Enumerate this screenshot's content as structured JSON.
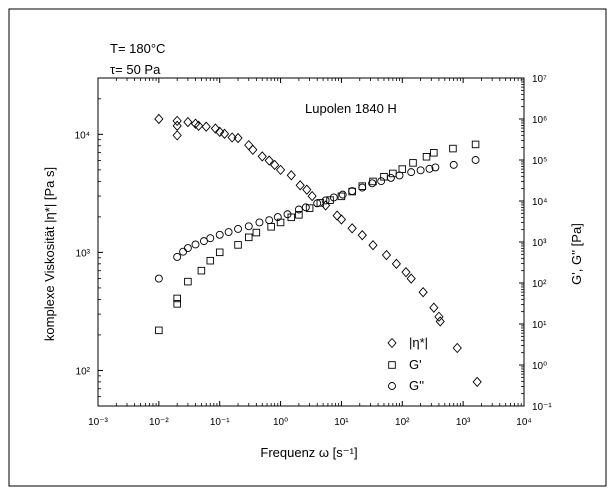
{
  "chart_data": {
    "type": "scatter",
    "title": "Lupolen 1840 H",
    "conditions": [
      "T= 180°C",
      "τ= 50 Pa"
    ],
    "xlabel": "Frequenz ω [s⁻¹]",
    "ylabel_left": "komplexe Viskosität |η*| [Pa s]",
    "ylabel_right": "G', G'' [Pa]",
    "x_scale": "log",
    "y_left_scale": "log",
    "y_right_scale": "log",
    "xlim": [
      0.001,
      10000
    ],
    "ylim_left": [
      50,
      30000
    ],
    "ylim_right": [
      0.1,
      10000000
    ],
    "x_ticks": [
      {
        "value": 0.001,
        "label": "10⁻³"
      },
      {
        "value": 0.01,
        "label": "10⁻²"
      },
      {
        "value": 0.1,
        "label": "10⁻¹"
      },
      {
        "value": 1,
        "label": "10⁰"
      },
      {
        "value": 10,
        "label": "10¹"
      },
      {
        "value": 100,
        "label": "10²"
      },
      {
        "value": 1000,
        "label": "10³"
      },
      {
        "value": 10000,
        "label": "10⁴"
      }
    ],
    "y_left_ticks": [
      {
        "value": 100,
        "label": "10²"
      },
      {
        "value": 1000,
        "label": "10³"
      },
      {
        "value": 10000,
        "label": "10⁴"
      }
    ],
    "y_right_ticks": [
      {
        "value": 0.1,
        "label": "10⁻¹"
      },
      {
        "value": 1,
        "label": "10⁰"
      },
      {
        "value": 10,
        "label": "10¹"
      },
      {
        "value": 100,
        "label": "10²"
      },
      {
        "value": 1000,
        "label": "10³"
      },
      {
        "value": 10000,
        "label": "10⁴"
      },
      {
        "value": 100000,
        "label": "10⁵"
      },
      {
        "value": 1000000,
        "label": "10⁶"
      },
      {
        "value": 10000000,
        "label": "10⁷"
      }
    ],
    "legend_position": "bottom-right",
    "series": [
      {
        "name": "|η*|",
        "marker": "diamond",
        "axis": "left",
        "points": [
          [
            0.01,
            13500
          ],
          [
            0.02,
            9800
          ],
          [
            0.02,
            11800
          ],
          [
            0.02,
            13000
          ],
          [
            0.03,
            12700
          ],
          [
            0.04,
            12300
          ],
          [
            0.045,
            11800
          ],
          [
            0.06,
            11600
          ],
          [
            0.085,
            11200
          ],
          [
            0.1,
            10500
          ],
          [
            0.12,
            10100
          ],
          [
            0.16,
            9400
          ],
          [
            0.2,
            9300
          ],
          [
            0.3,
            8100
          ],
          [
            0.35,
            7400
          ],
          [
            0.5,
            6500
          ],
          [
            0.65,
            6000
          ],
          [
            0.8,
            5500
          ],
          [
            1.0,
            5000
          ],
          [
            1.5,
            4500
          ],
          [
            2.1,
            3700
          ],
          [
            2.7,
            3400
          ],
          [
            3.3,
            3000
          ],
          [
            5.5,
            2500
          ],
          [
            8.5,
            2050
          ],
          [
            10,
            1900
          ],
          [
            15,
            1600
          ],
          [
            22,
            1400
          ],
          [
            33,
            1150
          ],
          [
            55,
            950
          ],
          [
            80,
            800
          ],
          [
            115,
            680
          ],
          [
            140,
            600
          ],
          [
            220,
            460
          ],
          [
            330,
            340
          ],
          [
            400,
            285
          ],
          [
            420,
            260
          ],
          [
            800,
            155
          ],
          [
            1700,
            80
          ]
        ]
      },
      {
        "name": "G'",
        "marker": "square",
        "axis": "right",
        "points": [
          [
            0.01,
            7
          ],
          [
            0.02,
            31
          ],
          [
            0.02,
            42
          ],
          [
            0.03,
            108
          ],
          [
            0.05,
            200
          ],
          [
            0.07,
            350
          ],
          [
            0.1,
            560
          ],
          [
            0.2,
            850
          ],
          [
            0.3,
            1300
          ],
          [
            0.4,
            1700
          ],
          [
            0.7,
            2350
          ],
          [
            1.0,
            3000
          ],
          [
            1.5,
            4000
          ],
          [
            2.0,
            4600
          ],
          [
            3.0,
            6700
          ],
          [
            4.5,
            9000
          ],
          [
            6.5,
            10500
          ],
          [
            10,
            13000
          ],
          [
            15,
            17000
          ],
          [
            22,
            23000
          ],
          [
            33,
            30000
          ],
          [
            50,
            39000
          ],
          [
            70,
            47000
          ],
          [
            100,
            60000
          ],
          [
            150,
            85000
          ],
          [
            250,
            120000
          ],
          [
            330,
            150000
          ],
          [
            680,
            190000
          ],
          [
            1600,
            240000
          ]
        ]
      },
      {
        "name": "G''",
        "marker": "circle",
        "axis": "right",
        "points": [
          [
            0.01,
            128
          ],
          [
            0.02,
            432
          ],
          [
            0.025,
            580
          ],
          [
            0.03,
            710
          ],
          [
            0.04,
            870
          ],
          [
            0.055,
            1050
          ],
          [
            0.07,
            1240
          ],
          [
            0.1,
            1500
          ],
          [
            0.14,
            1750
          ],
          [
            0.2,
            2080
          ],
          [
            0.3,
            2420
          ],
          [
            0.45,
            3000
          ],
          [
            0.65,
            3400
          ],
          [
            0.9,
            4050
          ],
          [
            1.3,
            4750
          ],
          [
            2.0,
            6200
          ],
          [
            2.6,
            7000
          ],
          [
            4.0,
            8800
          ],
          [
            5.5,
            10300
          ],
          [
            7.5,
            12200
          ],
          [
            10.5,
            14300
          ],
          [
            15,
            17500
          ],
          [
            22,
            21300
          ],
          [
            32,
            27000
          ],
          [
            45,
            30500
          ],
          [
            65,
            36600
          ],
          [
            90,
            42000
          ],
          [
            140,
            50600
          ],
          [
            200,
            56000
          ],
          [
            280,
            61000
          ],
          [
            350,
            66000
          ],
          [
            700,
            76000
          ],
          [
            1600,
            100000
          ]
        ]
      }
    ]
  }
}
